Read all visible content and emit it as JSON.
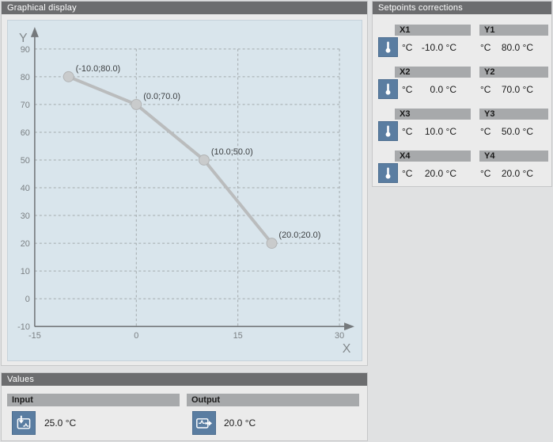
{
  "graphical_display": {
    "title": "Graphical display"
  },
  "setpoints": {
    "title": "Setpoints corrections",
    "rows": [
      {
        "x_label": "X1",
        "x_unit": "°C",
        "x_value": "-10.0 °C",
        "y_label": "Y1",
        "y_unit": "°C",
        "y_value": "80.0 °C"
      },
      {
        "x_label": "X2",
        "x_unit": "°C",
        "x_value": "0.0 °C",
        "y_label": "Y2",
        "y_unit": "°C",
        "y_value": "70.0 °C"
      },
      {
        "x_label": "X3",
        "x_unit": "°C",
        "x_value": "10.0 °C",
        "y_label": "Y3",
        "y_unit": "°C",
        "y_value": "50.0 °C"
      },
      {
        "x_label": "X4",
        "x_unit": "°C",
        "x_value": "20.0 °C",
        "y_label": "Y4",
        "y_unit": "°C",
        "y_value": "20.0 °C"
      }
    ]
  },
  "values": {
    "title": "Values",
    "input_label": "Input",
    "input_value": "25.0 °C",
    "output_label": "Output",
    "output_value": "20.0 °C"
  },
  "icons": {
    "setpoint": "thermometer-icon",
    "input": "analog-input-icon",
    "output": "analog-output-icon"
  },
  "chart_data": {
    "type": "line",
    "x": [
      -10,
      0,
      10,
      20
    ],
    "y": [
      80,
      70,
      50,
      20
    ],
    "point_labels": [
      "(-10.0;80.0)",
      "(0.0;70.0)",
      "(10.0;50.0)",
      "(20.0;20.0)"
    ],
    "xlabel": "X",
    "ylabel": "Y",
    "xlim": [
      -15,
      30
    ],
    "ylim": [
      -10,
      90
    ],
    "x_ticks": [
      -15,
      0,
      15,
      30
    ],
    "y_ticks": [
      -10,
      0,
      10,
      20,
      30,
      40,
      50,
      60,
      70,
      80,
      90
    ],
    "grid": true,
    "legend": false,
    "plot_bg": "#d9e5ec",
    "line_color": "#babcbd",
    "marker_color": "#c9cbcc"
  },
  "colors": {
    "panel_header_bg": "#6c6d6f",
    "panel_body_bg": "#ebebeb",
    "field_bar_bg": "#a7a9ab",
    "icon_bg": "#5a7da1",
    "axis": "#75797c",
    "grid": "#a3aaad",
    "tick_text": "#7c8184",
    "axis_label_text": "#83898c",
    "point_label_text": "#3b3e40"
  }
}
